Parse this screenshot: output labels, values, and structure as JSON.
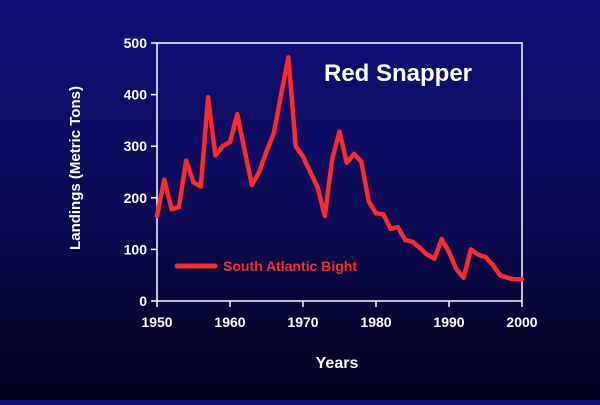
{
  "chart_data": {
    "type": "line",
    "title": "Red Snapper",
    "xlabel": "Years",
    "ylabel": "Landings (Metric Tons)",
    "xlim": [
      1950,
      2000
    ],
    "ylim": [
      0,
      500
    ],
    "x_ticks": [
      1950,
      1960,
      1970,
      1980,
      1990,
      2000
    ],
    "y_ticks": [
      0,
      100,
      200,
      300,
      400,
      500
    ],
    "grid": false,
    "legend_position": "lower-left",
    "colors": {
      "line": "#ff2a2a",
      "axes": "#ffffff",
      "tick_text": "#ffffff",
      "title_text": "#ffffff",
      "legend_text": "#ff2a2a"
    },
    "series": [
      {
        "name": "South Atlantic Bight",
        "x": [
          1950,
          1951,
          1952,
          1953,
          1954,
          1955,
          1956,
          1957,
          1958,
          1959,
          1960,
          1961,
          1962,
          1963,
          1964,
          1965,
          1966,
          1967,
          1968,
          1969,
          1970,
          1971,
          1972,
          1973,
          1974,
          1975,
          1976,
          1977,
          1978,
          1979,
          1980,
          1981,
          1982,
          1983,
          1984,
          1985,
          1986,
          1987,
          1988,
          1989,
          1990,
          1991,
          1992,
          1993,
          1994,
          1995,
          1996,
          1997,
          1998,
          1999,
          2000
        ],
        "values": [
          165,
          235,
          178,
          182,
          272,
          230,
          222,
          395,
          282,
          300,
          308,
          362,
          292,
          225,
          250,
          290,
          325,
          400,
          472,
          300,
          280,
          250,
          220,
          165,
          275,
          328,
          268,
          285,
          270,
          193,
          170,
          168,
          140,
          143,
          118,
          115,
          103,
          90,
          82,
          120,
          95,
          62,
          45,
          100,
          90,
          85,
          70,
          50,
          45,
          42,
          42
        ]
      }
    ]
  }
}
